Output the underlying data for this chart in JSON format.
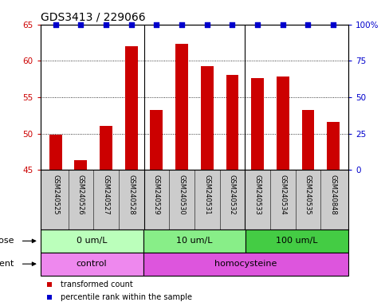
{
  "title": "GDS3413 / 229066",
  "samples": [
    "GSM240525",
    "GSM240526",
    "GSM240527",
    "GSM240528",
    "GSM240529",
    "GSM240530",
    "GSM240531",
    "GSM240532",
    "GSM240533",
    "GSM240534",
    "GSM240535",
    "GSM240848"
  ],
  "red_values": [
    49.8,
    46.3,
    51.0,
    62.0,
    53.2,
    62.3,
    59.3,
    58.1,
    57.6,
    57.8,
    53.2,
    51.6
  ],
  "blue_values": [
    100,
    100,
    100,
    100,
    100,
    100,
    100,
    100,
    100,
    100,
    100,
    100
  ],
  "ylim_left": [
    45,
    65
  ],
  "ylim_right": [
    0,
    100
  ],
  "yticks_left": [
    45,
    50,
    55,
    60,
    65
  ],
  "yticks_right": [
    0,
    25,
    50,
    75,
    100
  ],
  "right_tick_labels": [
    "0",
    "25",
    "50",
    "75",
    "100%"
  ],
  "dose_groups": [
    {
      "label": "0 um/L",
      "start": 0,
      "end": 4,
      "color": "#bbffbb"
    },
    {
      "label": "10 um/L",
      "start": 4,
      "end": 8,
      "color": "#88ee88"
    },
    {
      "label": "100 um/L",
      "start": 8,
      "end": 12,
      "color": "#44cc44"
    }
  ],
  "agent_groups": [
    {
      "label": "control",
      "start": 0,
      "end": 4,
      "color": "#ee88ee"
    },
    {
      "label": "homocysteine",
      "start": 4,
      "end": 12,
      "color": "#dd55dd"
    }
  ],
  "bar_color": "#cc0000",
  "dot_color": "#0000cc",
  "names_bg_color": "#cccccc",
  "legend_items": [
    {
      "color": "#cc0000",
      "label": "transformed count"
    },
    {
      "color": "#0000cc",
      "label": "percentile rank within the sample"
    }
  ],
  "axis_color_left": "#cc0000",
  "axis_color_right": "#0000cc",
  "background_color": "#ffffff",
  "title_fontsize": 10,
  "tick_fontsize": 7.5,
  "sample_fontsize": 6,
  "row_fontsize": 8,
  "legend_fontsize": 7
}
